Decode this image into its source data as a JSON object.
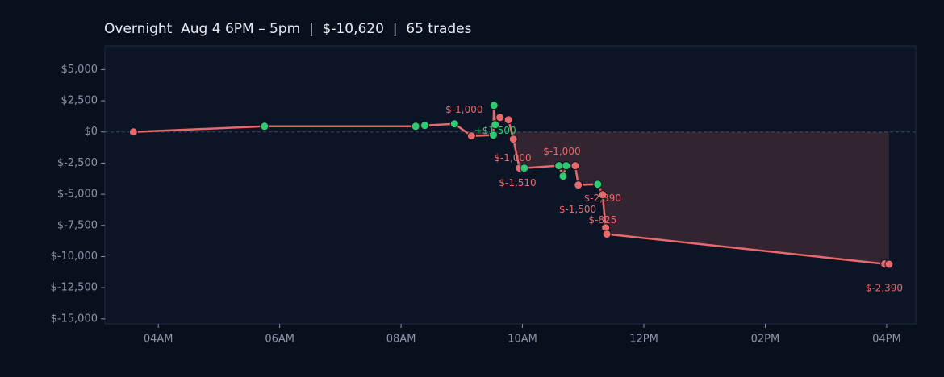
{
  "chart_data": {
    "type": "line",
    "title": "Overnight  Aug 4 6PM – 5pm  |  $-10,620  |  65 trades",
    "x": [
      3.59,
      5.75,
      8.24,
      8.39,
      8.88,
      9.16,
      9.52,
      9.53,
      9.55,
      9.63,
      9.77,
      9.85,
      9.95,
      10.03,
      10.6,
      10.67,
      10.72,
      10.87,
      10.92,
      11.24,
      11.32,
      11.37,
      11.39,
      15.97,
      16.04
    ],
    "series": [
      {
        "color": "#e8696b",
        "values": [
          0,
          450,
          450,
          520,
          650,
          -320,
          -250,
          2130,
          580,
          1160,
          970,
          -580,
          -2900,
          -2900,
          -2710,
          -3550,
          -2710,
          -2710,
          -4260,
          -4200,
          -5040,
          -7690,
          -8200,
          -10590,
          -10620
        ],
        "point_colors": [
          "#e8696b",
          "#2ecc71",
          "#2ecc71",
          "#2ecc71",
          "#2ecc71",
          "#e8696b",
          "#2ecc71",
          "#2ecc71",
          "#2ecc71",
          "#e8696b",
          "#e8696b",
          "#e8696b",
          "#e8696b",
          "#2ecc71",
          "#2ecc71",
          "#2ecc71",
          "#2ecc71",
          "#e8696b",
          "#e8696b",
          "#2ecc71",
          "#e8696b",
          "#e8696b",
          "#e8696b",
          "#e8696b",
          "#e8696b"
        ]
      }
    ],
    "annotations": [
      {
        "text": "$-1,000",
        "x": 9.04,
        "y": 1770,
        "color": "#e8696b"
      },
      {
        "text": "+$1,500",
        "x": 9.55,
        "y": 90,
        "color": "#2ecc71"
      },
      {
        "text": "$-1,000",
        "x": 9.84,
        "y": -2106,
        "color": "#e8696b"
      },
      {
        "text": "$-1,510",
        "x": 9.92,
        "y": -4108,
        "color": "#e8696b"
      },
      {
        "text": "$-1,000",
        "x": 10.65,
        "y": -1589,
        "color": "#e8696b"
      },
      {
        "text": "$-2,390",
        "x": 11.32,
        "y": -5336,
        "color": "#e8696b"
      },
      {
        "text": "$-1,500",
        "x": 10.91,
        "y": -6240,
        "color": "#e8696b"
      },
      {
        "text": "$-825",
        "x": 11.32,
        "y": -7080,
        "color": "#e8696b"
      },
      {
        "text": "$-2,390",
        "x": 15.96,
        "y": -12570,
        "color": "#e8696b"
      }
    ],
    "xlim": [
      3.12,
      16.48
    ],
    "xticks": [
      {
        "value": 4,
        "label": "04AM"
      },
      {
        "value": 6,
        "label": "06AM"
      },
      {
        "value": 8,
        "label": "08AM"
      },
      {
        "value": 10,
        "label": "10AM"
      },
      {
        "value": 12,
        "label": "12PM"
      },
      {
        "value": 14,
        "label": "02PM"
      },
      {
        "value": 16,
        "label": "04PM"
      }
    ],
    "ylim": [
      -15400,
      6900
    ],
    "yticks": [
      {
        "value": 5000,
        "label": "$5,000"
      },
      {
        "value": 2500,
        "label": "$2,500"
      },
      {
        "value": 0,
        "label": "$0"
      },
      {
        "value": -2500,
        "label": "$-2,500"
      },
      {
        "value": -5000,
        "label": "$-5,000"
      },
      {
        "value": -7500,
        "label": "$-7,500"
      },
      {
        "value": -10000,
        "label": "$-10,000"
      },
      {
        "value": -12500,
        "label": "$-12,500"
      },
      {
        "value": -15000,
        "label": "$-15,000"
      }
    ],
    "grid": false,
    "zero_line": true
  }
}
